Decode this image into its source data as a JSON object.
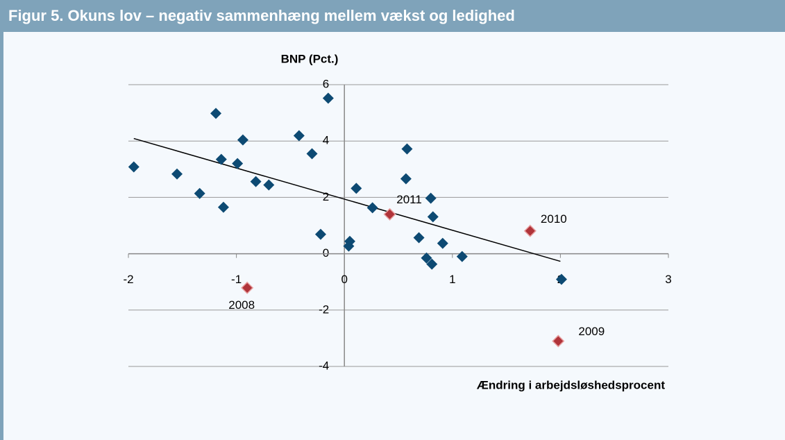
{
  "chart_data": {
    "type": "scatter",
    "title": "Figur 5. Okuns lov – negativ sammenhæng mellem vækst og ledighed",
    "y_label": "BNP (Pct.)",
    "x_label": "Ændring i arbejdsløshedsprocent",
    "xlim": [
      -2,
      3
    ],
    "xticks": [
      -2,
      -1,
      0,
      1,
      2,
      3
    ],
    "ylim": [
      -4,
      6
    ],
    "yticks": [
      -4,
      -2,
      0,
      2,
      4,
      6
    ],
    "grid": true,
    "series": [
      {
        "color": "#0d4a73",
        "x": [
          -1.95,
          -1.55,
          -1.34,
          -1.19,
          -1.14,
          -1.12,
          -0.99,
          -0.94,
          -0.82,
          -0.7,
          -0.42,
          -0.3,
          -0.22,
          -0.15,
          0.05,
          0.04,
          0.11,
          0.26,
          0.58,
          0.57,
          0.8,
          0.82,
          0.69,
          0.76,
          0.81,
          0.91,
          1.09,
          2.01
        ],
        "values": [
          3.08,
          2.83,
          2.14,
          4.98,
          3.35,
          1.65,
          3.2,
          4.04,
          2.56,
          2.44,
          4.19,
          3.55,
          0.69,
          5.52,
          0.44,
          0.27,
          2.32,
          1.63,
          3.72,
          2.66,
          1.97,
          1.31,
          0.57,
          -0.15,
          -0.37,
          0.37,
          -0.1,
          -0.91
        ]
      },
      {
        "color": "#b0343a",
        "x": [
          -0.9,
          0.42,
          1.72,
          1.98
        ],
        "values": [
          -1.21,
          1.4,
          0.81,
          -3.1
        ],
        "labels": [
          "2008",
          "2011",
          "2010",
          "2009"
        ]
      }
    ],
    "trendline": {
      "x": [
        -1.95,
        2.0
      ],
      "values": [
        4.09,
        -0.27
      ],
      "color": "#000000"
    }
  }
}
